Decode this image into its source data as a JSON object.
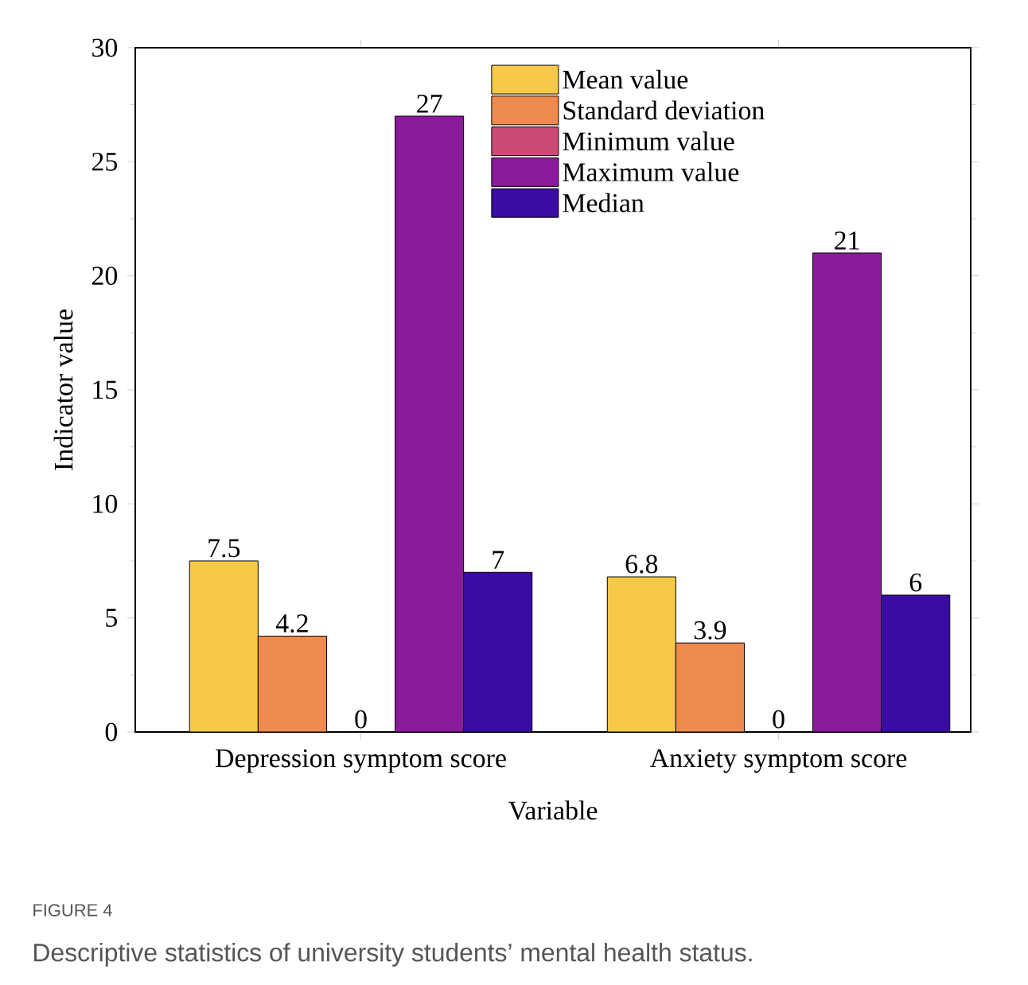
{
  "chart_data": {
    "type": "bar",
    "xlabel": "Variable",
    "ylabel": "Indicator value",
    "categories": [
      "Depression symptom score",
      "Anxiety symptom score"
    ],
    "series": [
      {
        "name": "Mean value",
        "color": "#f7c948",
        "values": [
          7.5,
          6.8
        ]
      },
      {
        "name": "Standard deviation",
        "color": "#ef8a4f",
        "values": [
          4.2,
          3.9
        ]
      },
      {
        "name": "Minimum value",
        "color": "#cc4a78",
        "values": [
          0,
          0
        ]
      },
      {
        "name": "Maximum value",
        "color": "#8b1a9c",
        "values": [
          27,
          21
        ]
      },
      {
        "name": "Median",
        "color": "#3a0ca3",
        "values": [
          7,
          6
        ]
      }
    ],
    "ylim": [
      0,
      30
    ],
    "yticks": [
      0,
      5,
      10,
      15,
      20,
      25,
      30
    ],
    "data_labels": true,
    "legend": "top",
    "annotations": [
      "FIGURE 4",
      "Descriptive statistics of university students’ mental health status."
    ]
  }
}
